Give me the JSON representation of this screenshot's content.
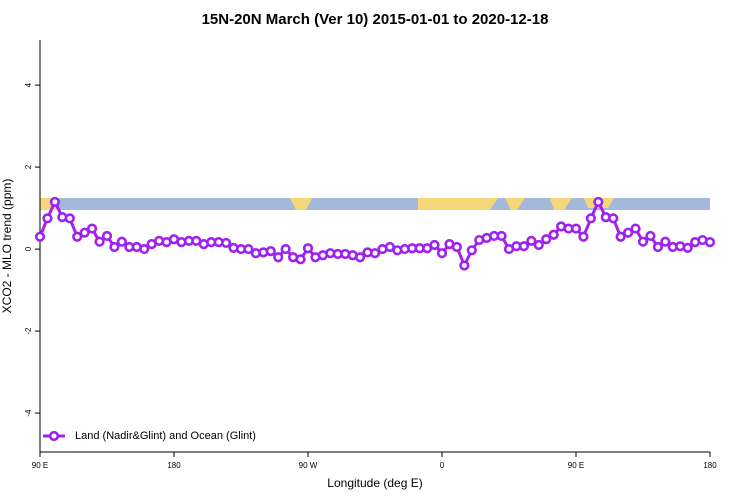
{
  "chart_data": {
    "type": "line",
    "title": "15N-20N March (Ver 10)   2015-01-01 to 2020-12-18",
    "xlabel": "Longitude (deg E)",
    "ylabel": "XCO2 - MLO trend (ppm)",
    "xlim": [
      90,
      540
    ],
    "xticks": [
      {
        "value": 90,
        "label": "90 E"
      },
      {
        "value": 180,
        "label": "180"
      },
      {
        "value": 270,
        "label": "90 W"
      },
      {
        "value": 360,
        "label": "0"
      },
      {
        "value": 450,
        "label": "90 E"
      },
      {
        "value": 540,
        "label": "180"
      }
    ],
    "ylim": [
      -4.95,
      5.1
    ],
    "yticks": [
      -4,
      -2,
      0,
      2,
      4
    ],
    "legend": "bottomleft",
    "x": [
      90,
      95,
      100,
      105,
      110,
      115,
      120,
      125,
      130,
      135,
      140,
      145,
      150,
      155,
      160,
      165,
      170,
      175,
      180,
      185,
      190,
      195,
      200,
      205,
      210,
      215,
      220,
      225,
      230,
      235,
      240,
      245,
      250,
      255,
      260,
      265,
      270,
      275,
      280,
      285,
      290,
      295,
      300,
      305,
      310,
      315,
      320,
      325,
      330,
      335,
      340,
      345,
      350,
      355,
      360,
      365,
      370,
      375,
      380,
      385,
      390,
      395,
      400,
      405,
      410,
      415,
      420,
      425,
      430,
      435,
      440,
      445,
      450,
      455,
      460,
      465,
      470,
      475,
      480,
      485,
      490,
      495,
      500,
      505,
      510,
      515,
      520,
      525,
      530,
      535,
      540
    ],
    "series": [
      {
        "name": "Land (Nadir&Glint) and Ocean (Glint)",
        "color": "#a020f0",
        "values": [
          0.3,
          0.75,
          1.15,
          0.78,
          0.75,
          0.3,
          0.4,
          0.5,
          0.18,
          0.32,
          0.05,
          0.18,
          0.05,
          0.05,
          0.0,
          0.12,
          0.2,
          0.17,
          0.24,
          0.17,
          0.2,
          0.2,
          0.12,
          0.17,
          0.17,
          0.15,
          0.03,
          0.0,
          0.0,
          -0.1,
          -0.08,
          -0.05,
          -0.2,
          0.0,
          -0.2,
          -0.25,
          0.02,
          -0.2,
          -0.15,
          -0.1,
          -0.12,
          -0.12,
          -0.15,
          -0.2,
          -0.08,
          -0.1,
          0.0,
          0.05,
          -0.03,
          0.0,
          0.02,
          0.02,
          0.02,
          0.1,
          -0.1,
          0.12,
          0.05,
          -0.4,
          -0.03,
          0.22,
          0.27,
          0.32,
          0.32,
          0.0,
          0.07,
          0.07,
          0.2,
          0.1,
          0.24,
          0.35,
          0.55,
          0.5,
          0.5,
          0.3,
          0.75,
          1.15,
          0.78,
          0.75,
          0.3,
          0.4,
          0.5,
          0.18,
          0.32,
          0.05,
          0.18,
          0.05,
          0.07,
          0.03,
          0.17,
          0.22,
          0.17
        ]
      }
    ]
  }
}
